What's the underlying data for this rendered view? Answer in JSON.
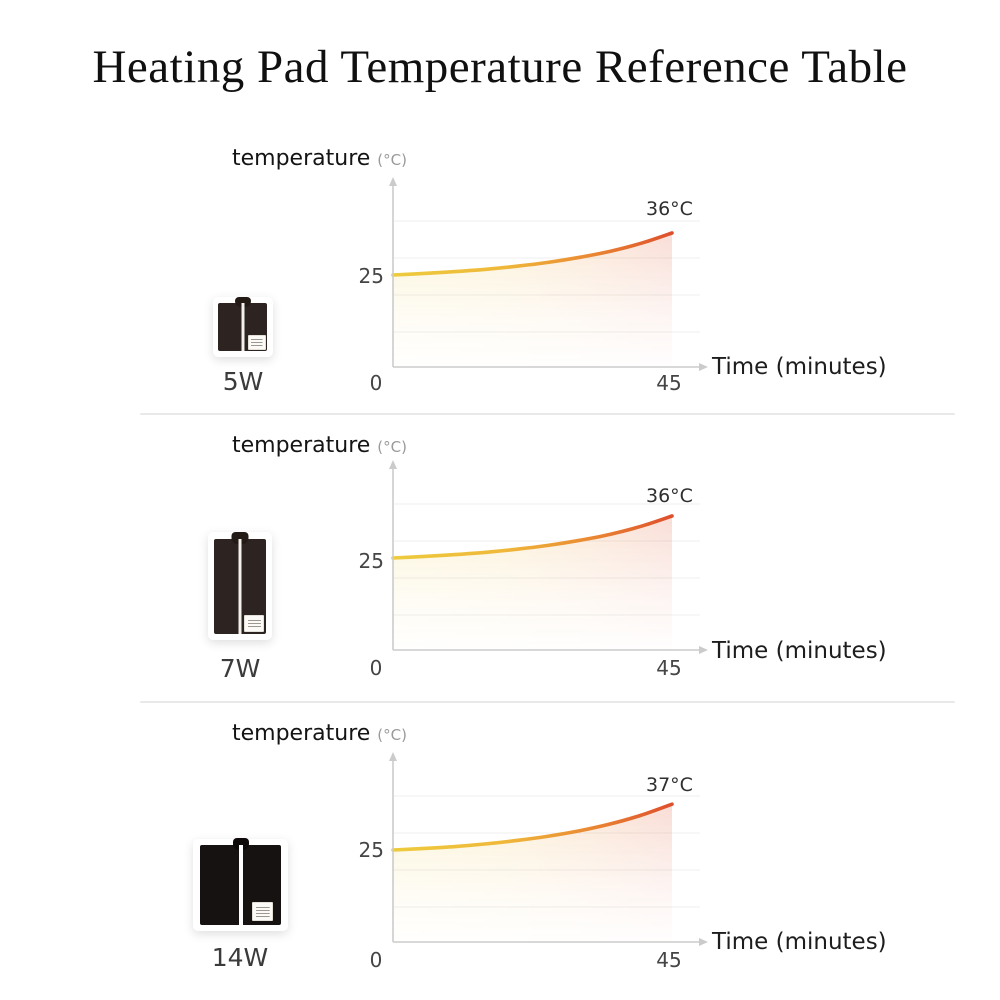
{
  "title": "Heating Pad Temperature Reference Table",
  "colors": {
    "curve_gradient": [
      "#EDCB3E",
      "#EFB83A",
      "#EA8A33",
      "#DE4F2D"
    ],
    "axis": "#cbcbcb",
    "grid": "#efefef",
    "separator": "#e9e9e9",
    "vest_dark": "#2d2320",
    "vest_black": "#161211"
  },
  "charts": [
    {
      "product_label": "5W",
      "y_axis_title": "temperature",
      "y_axis_unit": "(°C)",
      "x_axis_title": "Time (minutes)",
      "y_tick": "25",
      "x_tick_start": "0",
      "x_tick_end": "45",
      "peak_label": "36°C"
    },
    {
      "product_label": "7W",
      "y_axis_title": "temperature",
      "y_axis_unit": "(°C)",
      "x_axis_title": "Time (minutes)",
      "y_tick": "25",
      "x_tick_start": "0",
      "x_tick_end": "45",
      "peak_label": "36°C"
    },
    {
      "product_label": "14W",
      "y_axis_title": "temperature",
      "y_axis_unit": "(°C)",
      "x_axis_title": "Time (minutes)",
      "y_tick": "25",
      "x_tick_start": "0",
      "x_tick_end": "45",
      "peak_label": "37°C"
    }
  ],
  "chart_data": [
    {
      "type": "area",
      "title": "5W heating pad temperature rise",
      "xlabel": "Time (minutes)",
      "ylabel": "temperature (°C)",
      "x": [
        0,
        5,
        10,
        15,
        20,
        25,
        30,
        35,
        40,
        45
      ],
      "y": [
        25,
        25.4,
        25.9,
        26.5,
        27.3,
        28.3,
        29.6,
        31.2,
        33.3,
        36
      ],
      "xlim": [
        0,
        45
      ],
      "ylim": [
        0,
        40
      ],
      "x_ticks": [
        "0",
        "45"
      ],
      "y_ticks": [
        "25"
      ],
      "annotation": "36°C",
      "grid": true,
      "legend": null
    },
    {
      "type": "area",
      "title": "7W heating pad temperature rise",
      "xlabel": "Time (minutes)",
      "ylabel": "temperature (°C)",
      "x": [
        0,
        5,
        10,
        15,
        20,
        25,
        30,
        35,
        40,
        45
      ],
      "y": [
        25,
        25.4,
        25.9,
        26.5,
        27.3,
        28.3,
        29.6,
        31.2,
        33.3,
        36
      ],
      "xlim": [
        0,
        45
      ],
      "ylim": [
        0,
        40
      ],
      "x_ticks": [
        "0",
        "45"
      ],
      "y_ticks": [
        "25"
      ],
      "annotation": "36°C",
      "grid": true,
      "legend": null
    },
    {
      "type": "area",
      "title": "14W heating pad temperature rise",
      "xlabel": "Time (minutes)",
      "ylabel": "temperature (°C)",
      "x": [
        0,
        5,
        10,
        15,
        20,
        25,
        30,
        35,
        40,
        45
      ],
      "y": [
        25,
        25.4,
        25.9,
        26.6,
        27.5,
        28.6,
        30.0,
        31.8,
        34.1,
        37
      ],
      "xlim": [
        0,
        45
      ],
      "ylim": [
        0,
        40
      ],
      "x_ticks": [
        "0",
        "45"
      ],
      "y_ticks": [
        "25"
      ],
      "annotation": "37°C",
      "grid": true,
      "legend": null
    }
  ]
}
